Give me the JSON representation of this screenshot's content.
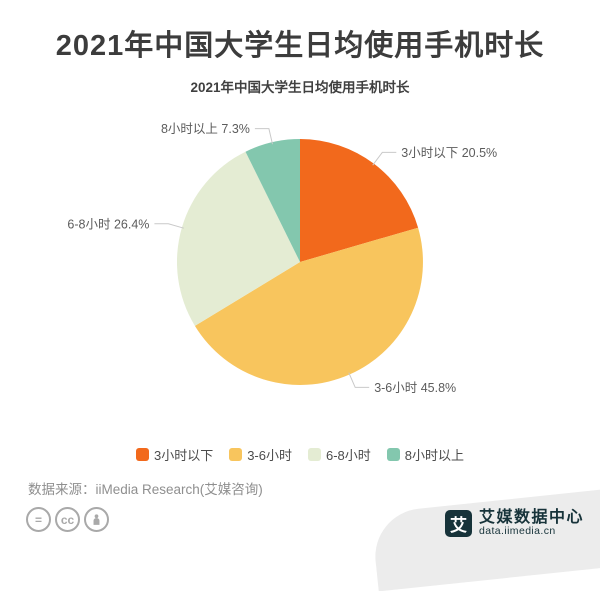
{
  "page": {
    "title": "2021年中国大学生日均使用手机时长",
    "source": "数据来源：iiMedia Research(艾媒咨询)",
    "brand": {
      "logo_char": "艾",
      "name": "艾媒数据中心",
      "url": "data.iimedia.cn"
    }
  },
  "chart_data": {
    "type": "pie",
    "title": "2021年中国大学生日均使用手机时长",
    "categories": [
      "3小时以下",
      "3-6小时",
      "6-8小时",
      "8小时以上"
    ],
    "values": [
      20.5,
      45.8,
      26.4,
      7.3
    ],
    "unit": "%",
    "labels": [
      "3小时以下 20.5%",
      "3-6小时 45.8%",
      "6-8小时 26.4%",
      "8小时以上 7.3%"
    ],
    "colors": [
      "#f2691c",
      "#f8c55d",
      "#e4ecd3",
      "#83c7ae"
    ],
    "start_angle": "12-oclock",
    "direction": "clockwise",
    "legend_position": "bottom",
    "label_color": "#5c5c5c",
    "leader_line_color": "#c9c9c9"
  }
}
